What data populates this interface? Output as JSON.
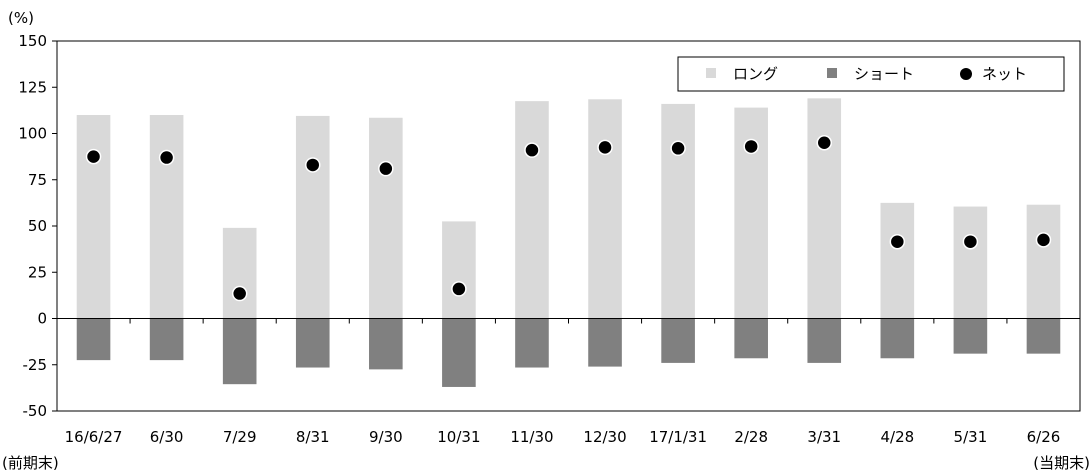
{
  "chart_data": {
    "type": "bar",
    "unit_label": "(%)",
    "categories": [
      "16/6/27",
      "6/30",
      "7/29",
      "8/31",
      "9/30",
      "10/31",
      "11/30",
      "12/30",
      "17/1/31",
      "2/28",
      "3/31",
      "4/28",
      "5/31",
      "6/26"
    ],
    "category_sublabels": [
      "(前期末)",
      "",
      "",
      "",
      "",
      "",
      "",
      "",
      "",
      "",
      "",
      "",
      "",
      "(当期末)"
    ],
    "series": [
      {
        "name": "ロング",
        "kind": "bar",
        "color": "#d9d9d9",
        "values": [
          110,
          110,
          49,
          109.5,
          108.5,
          52.5,
          117.5,
          118.5,
          116,
          114,
          119,
          62.5,
          60.5,
          61.5
        ]
      },
      {
        "name": "ショート",
        "kind": "bar",
        "color": "#808080",
        "values": [
          -22.5,
          -22.5,
          -35.5,
          -26.5,
          -27.5,
          -37,
          -26.5,
          -26,
          -24,
          -21.5,
          -24,
          -21.5,
          -19,
          -19
        ]
      },
      {
        "name": "ネット",
        "kind": "marker",
        "color": "#000000",
        "values": [
          87.5,
          87,
          13.5,
          83,
          81,
          16,
          91,
          92.5,
          92,
          93,
          95,
          41.5,
          41.5,
          42.5
        ]
      }
    ],
    "ylim": [
      -50,
      150
    ],
    "yticks": [
      150,
      125,
      100,
      75,
      50,
      25,
      0,
      -25,
      -50
    ],
    "grid": false,
    "legend_position": "top-right"
  }
}
